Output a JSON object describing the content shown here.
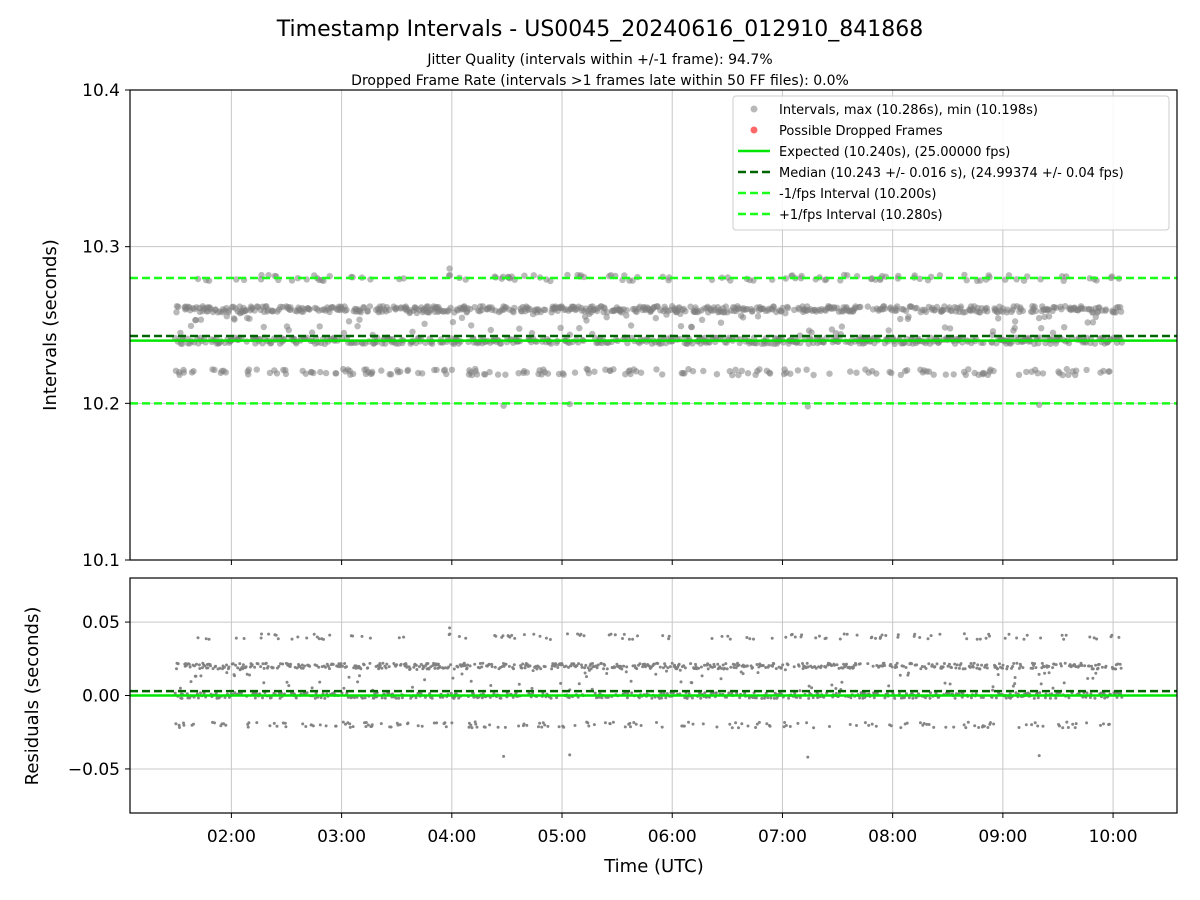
{
  "figure": {
    "title": "Timestamp Intervals - US0045_20240616_012910_841868",
    "subtitle1": "Jitter Quality (intervals within +/-1 frame): 94.7%",
    "subtitle2": "Dropped Frame Rate (intervals >1 frames late within 50 FF files): 0.0%"
  },
  "colors": {
    "points": "#808080",
    "dropped": "#ff4d4d",
    "expected": "#00e600",
    "median": "#006400",
    "fps_band": "#1aff1a",
    "grid": "#c8c8c8"
  },
  "chart_data": [
    {
      "type": "scatter",
      "panel": "intervals",
      "ylabel": "Intervals (seconds)",
      "xlabel": "",
      "xlim_hours": [
        1.08,
        10.58
      ],
      "ylim": [
        10.1,
        10.4
      ],
      "yticks": [
        "10.1",
        "10.2",
        "10.3",
        "10.4"
      ],
      "xticks": [
        "02:00",
        "03:00",
        "04:00",
        "05:00",
        "06:00",
        "07:00",
        "08:00",
        "09:00",
        "10:00"
      ],
      "time_range_hours": [
        1.49,
        10.08
      ],
      "grid": true,
      "legend_position": "top-right",
      "legend": [
        "Intervals, max (10.286s), min (10.198s)",
        "Possible Dropped Frames",
        "Expected (10.240s), (25.00000 fps)",
        "Median (10.243 +/- 0.016 s), (24.99374 +/- 0.04 fps)",
        "-1/fps Interval (10.200s)",
        "+1/fps Interval (10.280s)"
      ],
      "lines": [
        {
          "name": "Expected",
          "y": 10.24,
          "style": "solid"
        },
        {
          "name": "Median",
          "y": 10.243,
          "style": "dashed"
        },
        {
          "name": "-1/fps Interval",
          "y": 10.2,
          "style": "dashed"
        },
        {
          "name": "+1/fps Interval",
          "y": 10.28,
          "style": "dashed"
        }
      ],
      "interval_levels": [
        {
          "value": 10.26,
          "share": 0.38
        },
        {
          "value": 10.24,
          "share": 0.36
        },
        {
          "value": 10.22,
          "share": 0.12
        },
        {
          "value": 10.28,
          "share": 0.08
        },
        {
          "value": 10.25,
          "share": 0.06
        }
      ],
      "extremes": {
        "max": 10.286,
        "min": 10.198
      },
      "dropped_frames": 0
    },
    {
      "type": "scatter",
      "panel": "residuals",
      "ylabel": "Residuals (seconds)",
      "xlabel": "Time (UTC)",
      "xlim_hours": [
        1.08,
        10.58
      ],
      "ylim": [
        -0.08,
        0.08
      ],
      "yticks": [
        "−0.05",
        "0.00",
        "0.05"
      ],
      "ytick_values": [
        -0.05,
        0.0,
        0.05
      ],
      "xticks": [
        "02:00",
        "03:00",
        "04:00",
        "05:00",
        "06:00",
        "07:00",
        "08:00",
        "09:00",
        "10:00"
      ],
      "grid": true,
      "lines": [
        {
          "name": "Expected",
          "y": 0.0,
          "style": "solid"
        },
        {
          "name": "Median",
          "y": 0.003,
          "style": "dashed"
        }
      ]
    }
  ]
}
